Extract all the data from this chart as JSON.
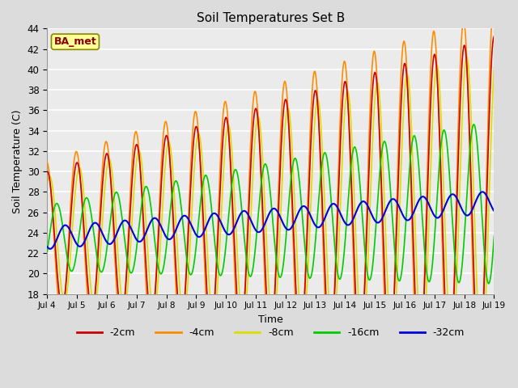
{
  "title": "Soil Temperatures Set B",
  "xlabel": "Time",
  "ylabel": "Soil Temperature (C)",
  "annotation": "BA_met",
  "annotation_color": "#8B0000",
  "annotation_bg": "#FFFF99",
  "ylim": [
    18,
    44
  ],
  "yticks": [
    18,
    20,
    22,
    24,
    26,
    28,
    30,
    32,
    34,
    36,
    38,
    40,
    42,
    44
  ],
  "xtick_labels": [
    "Jul 4",
    "Jul 5",
    "Jul 6",
    "Jul 7",
    "Jul 8",
    "Jul 9",
    "Jul 10",
    "Jul 11",
    "Jul 12",
    "Jul 13",
    "Jul 14",
    "Jul 15",
    "Jul 16",
    "Jul 17",
    "Jul 18",
    "Jul 19"
  ],
  "colors": {
    "-2cm": "#CC0000",
    "-4cm": "#FF8C00",
    "-8cm": "#DDDD00",
    "-16cm": "#00CC00",
    "-32cm": "#0000DD"
  },
  "bg_color": "#DCDCDC",
  "plot_bg_color": "#EBEBEB",
  "grid_color": "#FFFFFF",
  "legend_labels": [
    "-2cm",
    "-4cm",
    "-8cm",
    "-16cm",
    "-32cm"
  ]
}
